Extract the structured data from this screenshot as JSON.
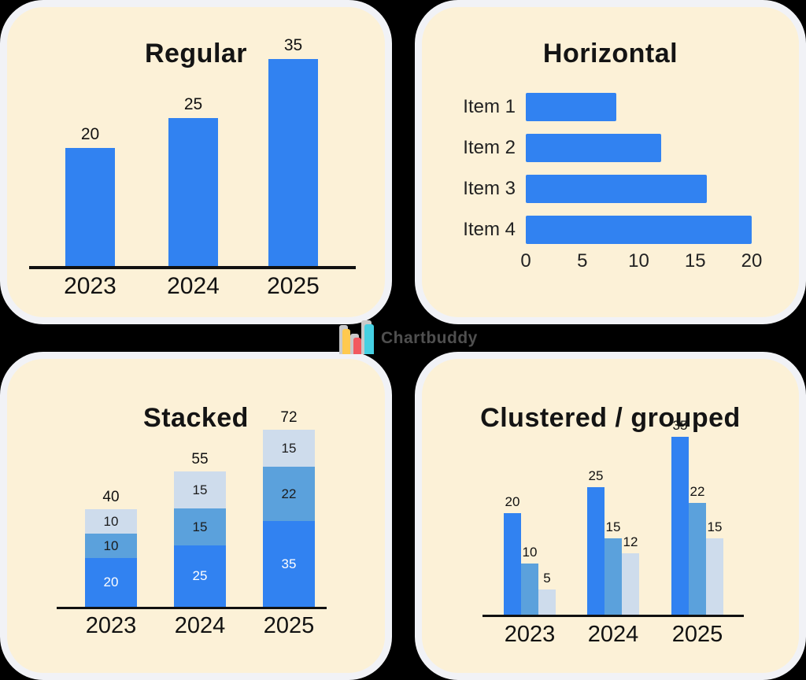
{
  "colors": {
    "page_bg": "#000000",
    "panel_bg": "#FCF1D7",
    "panel_ring": "#F1F2F6",
    "primary_blue": "#3182F1",
    "medium_blue": "#5BA1DC",
    "light_blue": "#CEDCEC",
    "axis_black": "#111111"
  },
  "watermark": {
    "brand_text": "Chartbuddy",
    "icon": "bar-chart-logo-icon",
    "icon_bar_colors": [
      "#FFC94F",
      "#F2595F",
      "#45D0E2"
    ]
  },
  "chart_data": [
    {
      "id": "regular",
      "type": "bar",
      "title": "Regular",
      "categories": [
        "2023",
        "2024",
        "2025"
      ],
      "values": [
        20,
        25,
        35
      ],
      "data_labels": [
        "20",
        "25",
        "35"
      ],
      "bar_color": "#3182F1",
      "grid": false,
      "legend": "none"
    },
    {
      "id": "horizontal",
      "type": "bar",
      "orientation": "horizontal",
      "title": "Horizontal",
      "categories": [
        "Item 1",
        "Item 2",
        "Item 3",
        "Item 4"
      ],
      "values": [
        8,
        12,
        16,
        20
      ],
      "x_ticks": [
        "0",
        "5",
        "10",
        "15",
        "20"
      ],
      "xlim": [
        0,
        20
      ],
      "bar_color": "#3182F1",
      "grid": false,
      "legend": "none"
    },
    {
      "id": "stacked",
      "type": "stacked-bar",
      "title": "Stacked",
      "categories": [
        "2023",
        "2024",
        "2025"
      ],
      "series": [
        {
          "name": "bottom",
          "color": "#3182F1",
          "values": [
            20,
            25,
            35
          ]
        },
        {
          "name": "middle",
          "color": "#5BA1DC",
          "values": [
            10,
            15,
            22
          ]
        },
        {
          "name": "top",
          "color": "#CEDCEC",
          "values": [
            10,
            15,
            15
          ]
        }
      ],
      "totals": [
        "40",
        "55",
        "72"
      ],
      "grid": false,
      "legend": "none"
    },
    {
      "id": "clustered",
      "type": "grouped-bar",
      "title": "Clustered / grouped",
      "categories": [
        "2023",
        "2024",
        "2025"
      ],
      "series": [
        {
          "name": "series-1",
          "color": "#3182F1",
          "values": [
            20,
            25,
            35
          ]
        },
        {
          "name": "series-2",
          "color": "#5BA1DC",
          "values": [
            10,
            15,
            22
          ]
        },
        {
          "name": "series-3",
          "color": "#CEDCEC",
          "values": [
            5,
            12,
            15
          ]
        }
      ],
      "grid": false,
      "legend": "none"
    }
  ]
}
